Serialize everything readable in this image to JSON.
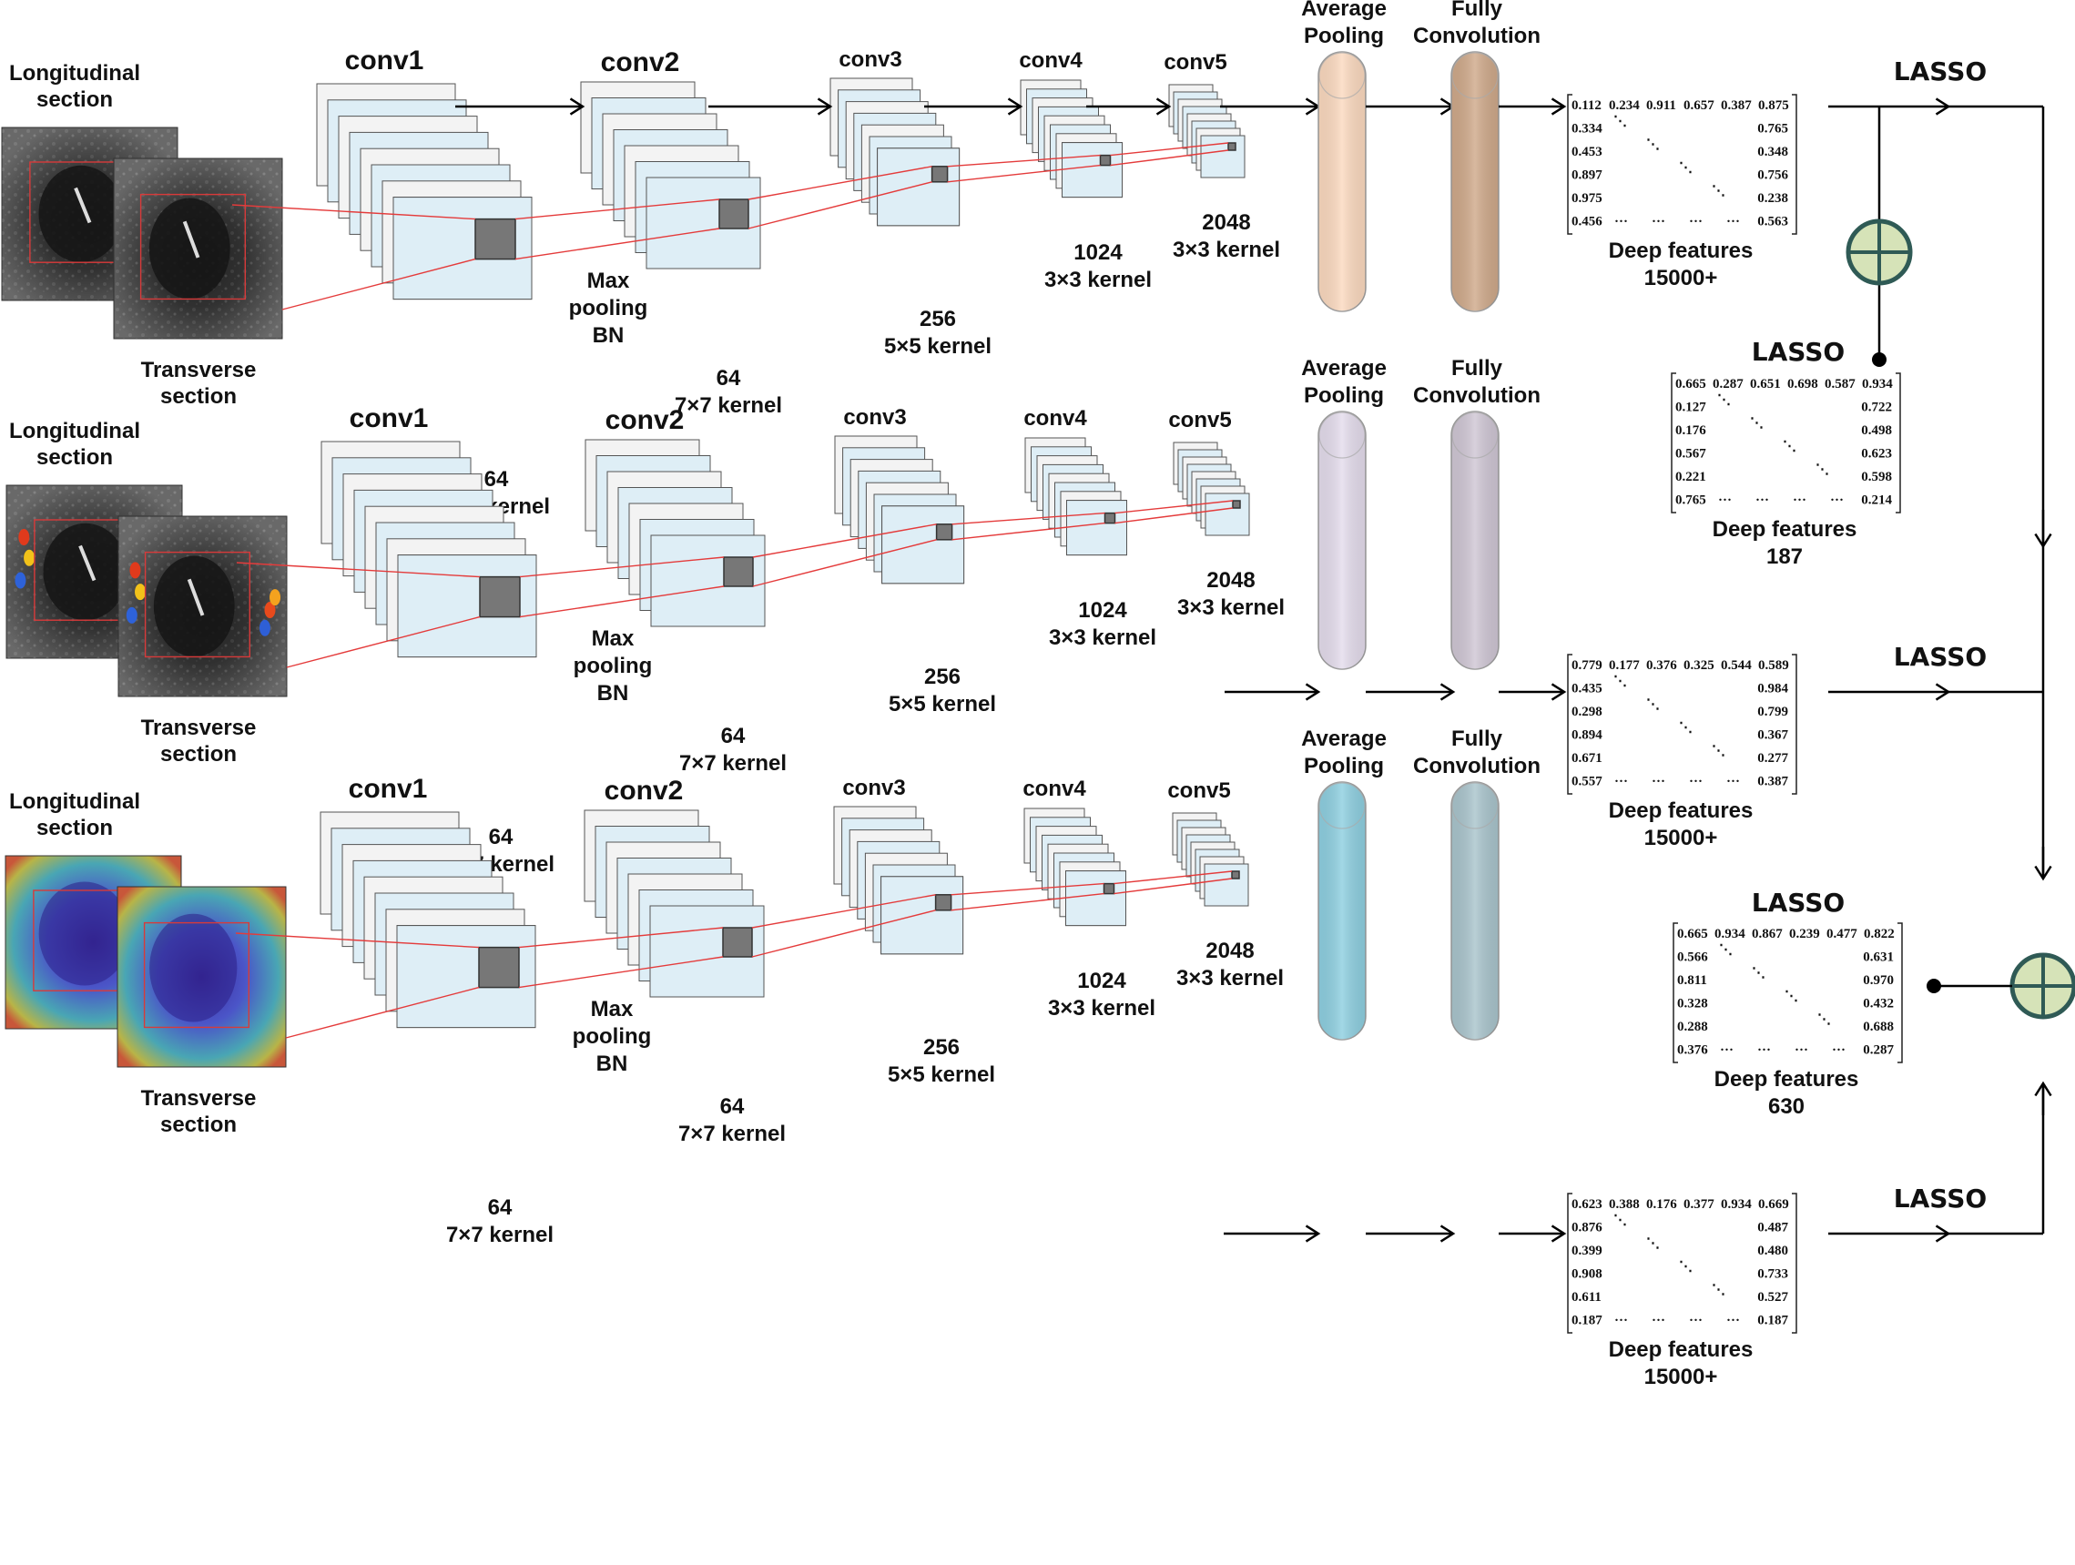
{
  "rows": [
    {
      "input": {
        "top_label": [
          "Longitudinal",
          "section"
        ],
        "bottom_label": [
          "Transverse",
          "section"
        ],
        "modality": "grayscale"
      },
      "layers": {
        "conv1": {
          "name": "conv1",
          "lines": [
            "64",
            "7×7 kernel"
          ]
        },
        "conv2": {
          "name": "conv2",
          "lines": [
            "64",
            "7×7 kernel"
          ],
          "side": [
            "Max",
            "pooling",
            "BN"
          ]
        },
        "conv3": {
          "name": "conv3",
          "lines": [
            "256",
            "5×5 kernel"
          ]
        },
        "conv4": {
          "name": "conv4",
          "lines": [
            "1024",
            "3×3 kernel"
          ]
        },
        "conv5": {
          "name": "conv5",
          "lines": [
            "2048",
            "3×3 kernel"
          ]
        }
      },
      "pool_label": [
        "Average",
        "Pooling"
      ],
      "fc_label": [
        "Fully",
        "Convolution"
      ],
      "pool_color": "#fbd9bf",
      "fc_color": "#cfa98a",
      "matrix": {
        "row1": [
          "0.112",
          "0.234",
          "0.911",
          "0.657",
          "0.387",
          "0.875"
        ],
        "first_col": [
          "0.334",
          "0.453",
          "0.897",
          "0.975",
          "0.456"
        ],
        "last_col": [
          "0.765",
          "0.348",
          "0.756",
          "0.238",
          "0.563"
        ],
        "caption": [
          "Deep features",
          "15000+"
        ]
      },
      "lasso": "LASSO"
    },
    {
      "input": {
        "top_label": [
          "Longitudinal",
          "section"
        ],
        "bottom_label": [
          "Transverse",
          "section"
        ],
        "modality": "doppler"
      },
      "layers": {
        "conv1": {
          "name": "conv1",
          "lines": [
            "64",
            "7×7 kernel"
          ]
        },
        "conv2": {
          "name": "conv2",
          "lines": [
            "64",
            "7×7 kernel"
          ],
          "side": [
            "Max",
            "pooling",
            "BN"
          ]
        },
        "conv3": {
          "name": "conv3",
          "lines": [
            "256",
            "5×5 kernel"
          ]
        },
        "conv4": {
          "name": "conv4",
          "lines": [
            "1024",
            "3×3 kernel"
          ]
        },
        "conv5": {
          "name": "conv5",
          "lines": [
            "2048",
            "3×3 kernel"
          ]
        }
      },
      "pool_label": [
        "Average",
        "Pooling"
      ],
      "fc_label": [
        "Fully",
        "Convolution"
      ],
      "pool_color": "#e4dcec",
      "fc_color": "#cfc6d4",
      "matrix": {
        "row1": [
          "0.779",
          "0.177",
          "0.376",
          "0.325",
          "0.544",
          "0.589"
        ],
        "first_col": [
          "0.435",
          "0.298",
          "0.894",
          "0.671",
          "0.557"
        ],
        "last_col": [
          "0.984",
          "0.799",
          "0.367",
          "0.277",
          "0.387"
        ],
        "caption": [
          "Deep features",
          "15000+"
        ]
      },
      "lasso": "LASSO"
    },
    {
      "input": {
        "top_label": [
          "Longitudinal",
          "section"
        ],
        "bottom_label": [
          "Transverse",
          "section"
        ],
        "modality": "elastography"
      },
      "layers": {
        "conv1": {
          "name": "conv1",
          "lines": [
            "64",
            "7×7 kernel"
          ]
        },
        "conv2": {
          "name": "conv2",
          "lines": [
            "64",
            "7×7 kernel"
          ],
          "side": [
            "Max",
            "pooling",
            "BN"
          ]
        },
        "conv3": {
          "name": "conv3",
          "lines": [
            "256",
            "5×5 kernel"
          ]
        },
        "conv4": {
          "name": "conv4",
          "lines": [
            "1024",
            "3×3 kernel"
          ]
        },
        "conv5": {
          "name": "conv5",
          "lines": [
            "2048",
            "3×3 kernel"
          ]
        }
      },
      "pool_label": [
        "Average",
        "Pooling"
      ],
      "fc_label": [
        "Fully",
        "Convolution"
      ],
      "pool_color": "#8ecfe0",
      "fc_color": "#a9c4cc",
      "matrix": {
        "row1": [
          "0.623",
          "0.388",
          "0.176",
          "0.377",
          "0.934",
          "0.669"
        ],
        "first_col": [
          "0.876",
          "0.399",
          "0.908",
          "0.611",
          "0.187"
        ],
        "last_col": [
          "0.487",
          "0.480",
          "0.733",
          "0.527",
          "0.187"
        ],
        "caption": [
          "Deep features",
          "15000+"
        ]
      },
      "lasso": "LASSO"
    }
  ],
  "fused": [
    {
      "lasso": "LASSO",
      "matrix": {
        "row1": [
          "0.665",
          "0.287",
          "0.651",
          "0.698",
          "0.587",
          "0.934"
        ],
        "first_col": [
          "0.127",
          "0.176",
          "0.567",
          "0.221",
          "0.765"
        ],
        "last_col": [
          "0.722",
          "0.498",
          "0.623",
          "0.598",
          "0.214"
        ],
        "caption": [
          "Deep features",
          "187"
        ]
      }
    },
    {
      "lasso": "LASSO",
      "matrix": {
        "row1": [
          "0.665",
          "0.934",
          "0.867",
          "0.239",
          "0.477",
          "0.822"
        ],
        "first_col": [
          "0.566",
          "0.811",
          "0.328",
          "0.288",
          "0.376"
        ],
        "last_col": [
          "0.631",
          "0.970",
          "0.432",
          "0.688",
          "0.287"
        ],
        "caption": [
          "Deep features",
          "630"
        ]
      }
    }
  ],
  "colors": {
    "feature_map": "#deeef6",
    "feature_map_back": "#f3f3f3",
    "kernel": "#777777",
    "projection_line": "#e43b3b",
    "concat_fill": "#d6e3b8",
    "concat_stroke": "#2f5a55"
  },
  "icons": {
    "concat": "circle-plus-icon",
    "junction": "dot-icon",
    "arrow": "arrow-right-icon"
  }
}
